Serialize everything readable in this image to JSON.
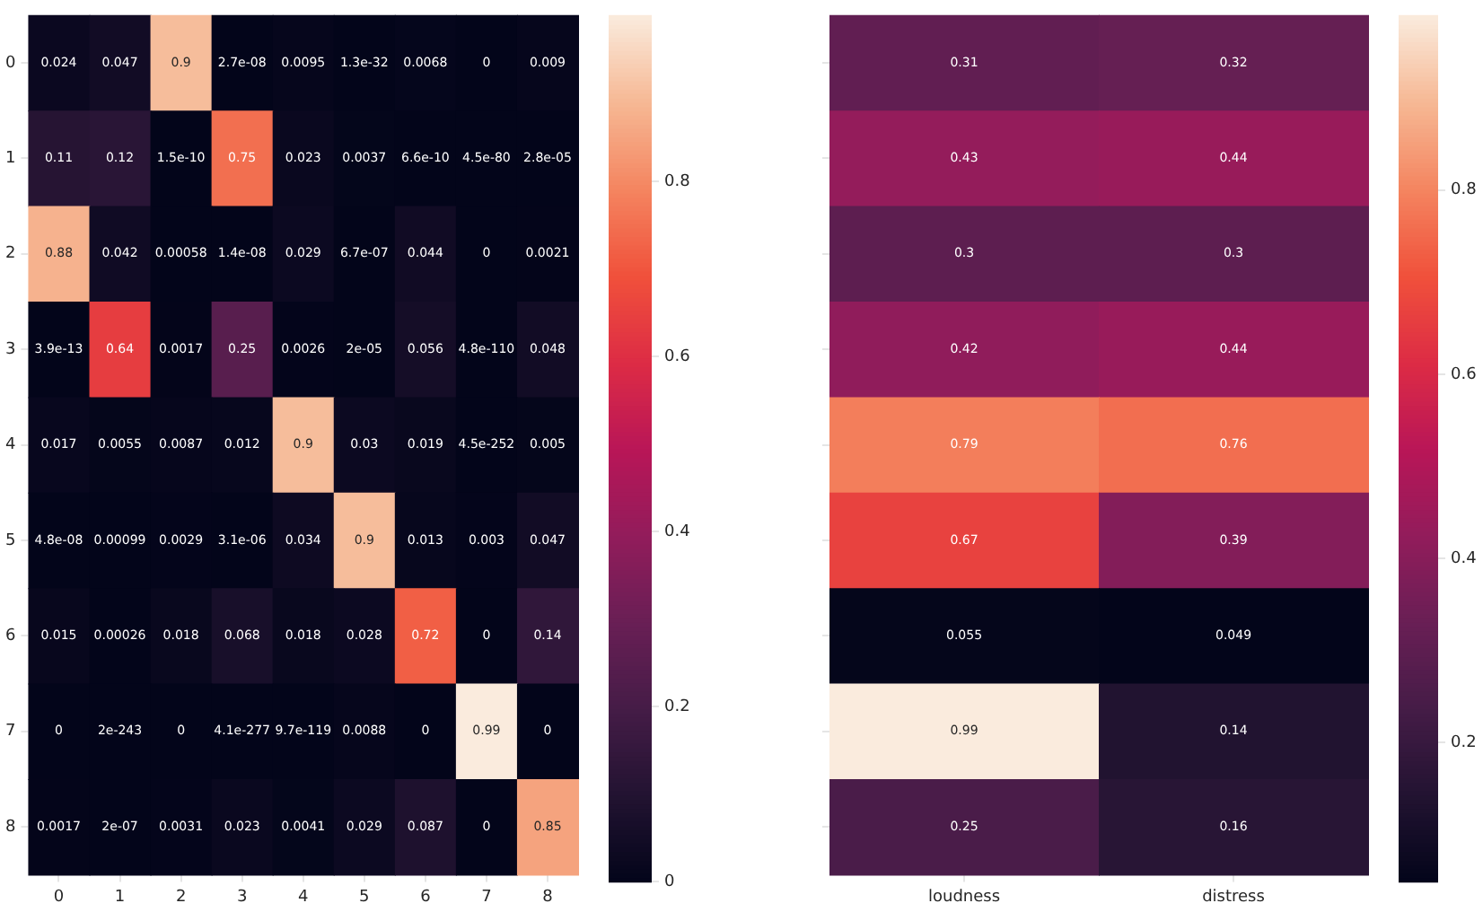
{
  "chart_data": [
    {
      "type": "heatmap",
      "categories": [
        "0",
        "1",
        "2",
        "3",
        "4",
        "5",
        "6",
        "7",
        "8"
      ],
      "y_categories": [
        "0",
        "1",
        "2",
        "3",
        "4",
        "5",
        "6",
        "7",
        "8"
      ],
      "clim": [
        0,
        0.99
      ],
      "cticks": [
        0,
        0.2,
        0.4,
        0.6,
        0.8
      ],
      "cells": [
        [
          0.024,
          0.047,
          0.9,
          2.7e-08,
          0.0095,
          1.3e-32,
          0.0068,
          0,
          0.009
        ],
        [
          0.11,
          0.12,
          1.5e-10,
          0.75,
          0.023,
          0.0037,
          6.6e-10,
          4.5e-80,
          2.8e-05
        ],
        [
          0.88,
          0.042,
          0.00058,
          1.4e-08,
          0.029,
          6.7e-07,
          0.044,
          0,
          0.0021
        ],
        [
          3.9e-13,
          0.64,
          0.0017,
          0.25,
          0.0026,
          2e-05,
          0.056,
          4.8e-110,
          0.048
        ],
        [
          0.017,
          0.0055,
          0.0087,
          0.012,
          0.9,
          0.03,
          0.019,
          4.5e-252,
          0.005
        ],
        [
          4.8e-08,
          0.00099,
          0.0029,
          3.1e-06,
          0.034,
          0.9,
          0.013,
          0.003,
          0.047
        ],
        [
          0.015,
          0.00026,
          0.018,
          0.068,
          0.018,
          0.028,
          0.72,
          0,
          0.14
        ],
        [
          0,
          2e-243,
          0,
          4.1e-277,
          9.7e-119,
          0.0088,
          0,
          0.99,
          0
        ],
        [
          0.0017,
          2e-07,
          0.0031,
          0.023,
          0.0041,
          0.029,
          0.087,
          0,
          0.85
        ]
      ],
      "cell_labels": [
        [
          "0.024",
          "0.047",
          "0.9",
          "2.7e-08",
          "0.0095",
          "1.3e-32",
          "0.0068",
          "0",
          "0.009"
        ],
        [
          "0.11",
          "0.12",
          "1.5e-10",
          "0.75",
          "0.023",
          "0.0037",
          "6.6e-10",
          "4.5e-80",
          "2.8e-05"
        ],
        [
          "0.88",
          "0.042",
          "0.00058",
          "1.4e-08",
          "0.029",
          "6.7e-07",
          "0.044",
          "0",
          "0.0021"
        ],
        [
          "3.9e-13",
          "0.64",
          "0.0017",
          "0.25",
          "0.0026",
          "2e-05",
          "0.056",
          "4.8e-110",
          "0.048"
        ],
        [
          "0.017",
          "0.0055",
          "0.0087",
          "0.012",
          "0.9",
          "0.03",
          "0.019",
          "4.5e-252",
          "0.005"
        ],
        [
          "4.8e-08",
          "0.00099",
          "0.0029",
          "3.1e-06",
          "0.034",
          "0.9",
          "0.013",
          "0.003",
          "0.047"
        ],
        [
          "0.015",
          "0.00026",
          "0.018",
          "0.068",
          "0.018",
          "0.028",
          "0.72",
          "0",
          "0.14"
        ],
        [
          "0",
          "2e-243",
          "0",
          "4.1e-277",
          "9.7e-119",
          "0.0088",
          "0",
          "0.99",
          "0"
        ],
        [
          "0.0017",
          "2e-07",
          "0.0031",
          "0.023",
          "0.0041",
          "0.029",
          "0.087",
          "0",
          "0.85"
        ]
      ]
    },
    {
      "type": "heatmap",
      "data_labels": true,
      "categories": [
        "loudness",
        "distress"
      ],
      "y_categories": [
        null,
        null,
        null,
        null,
        null,
        null,
        null,
        null,
        null
      ],
      "clim": [
        0.049,
        0.99
      ],
      "cticks": [
        0.2,
        0.4,
        0.6,
        0.8
      ],
      "cells": [
        [
          0.31,
          0.32
        ],
        [
          0.43,
          0.44
        ],
        [
          0.3,
          0.3
        ],
        [
          0.42,
          0.44
        ],
        [
          0.79,
          0.76
        ],
        [
          0.67,
          0.39
        ],
        [
          0.055,
          0.049
        ],
        [
          0.99,
          0.14
        ],
        [
          0.25,
          0.16
        ]
      ]
    }
  ]
}
